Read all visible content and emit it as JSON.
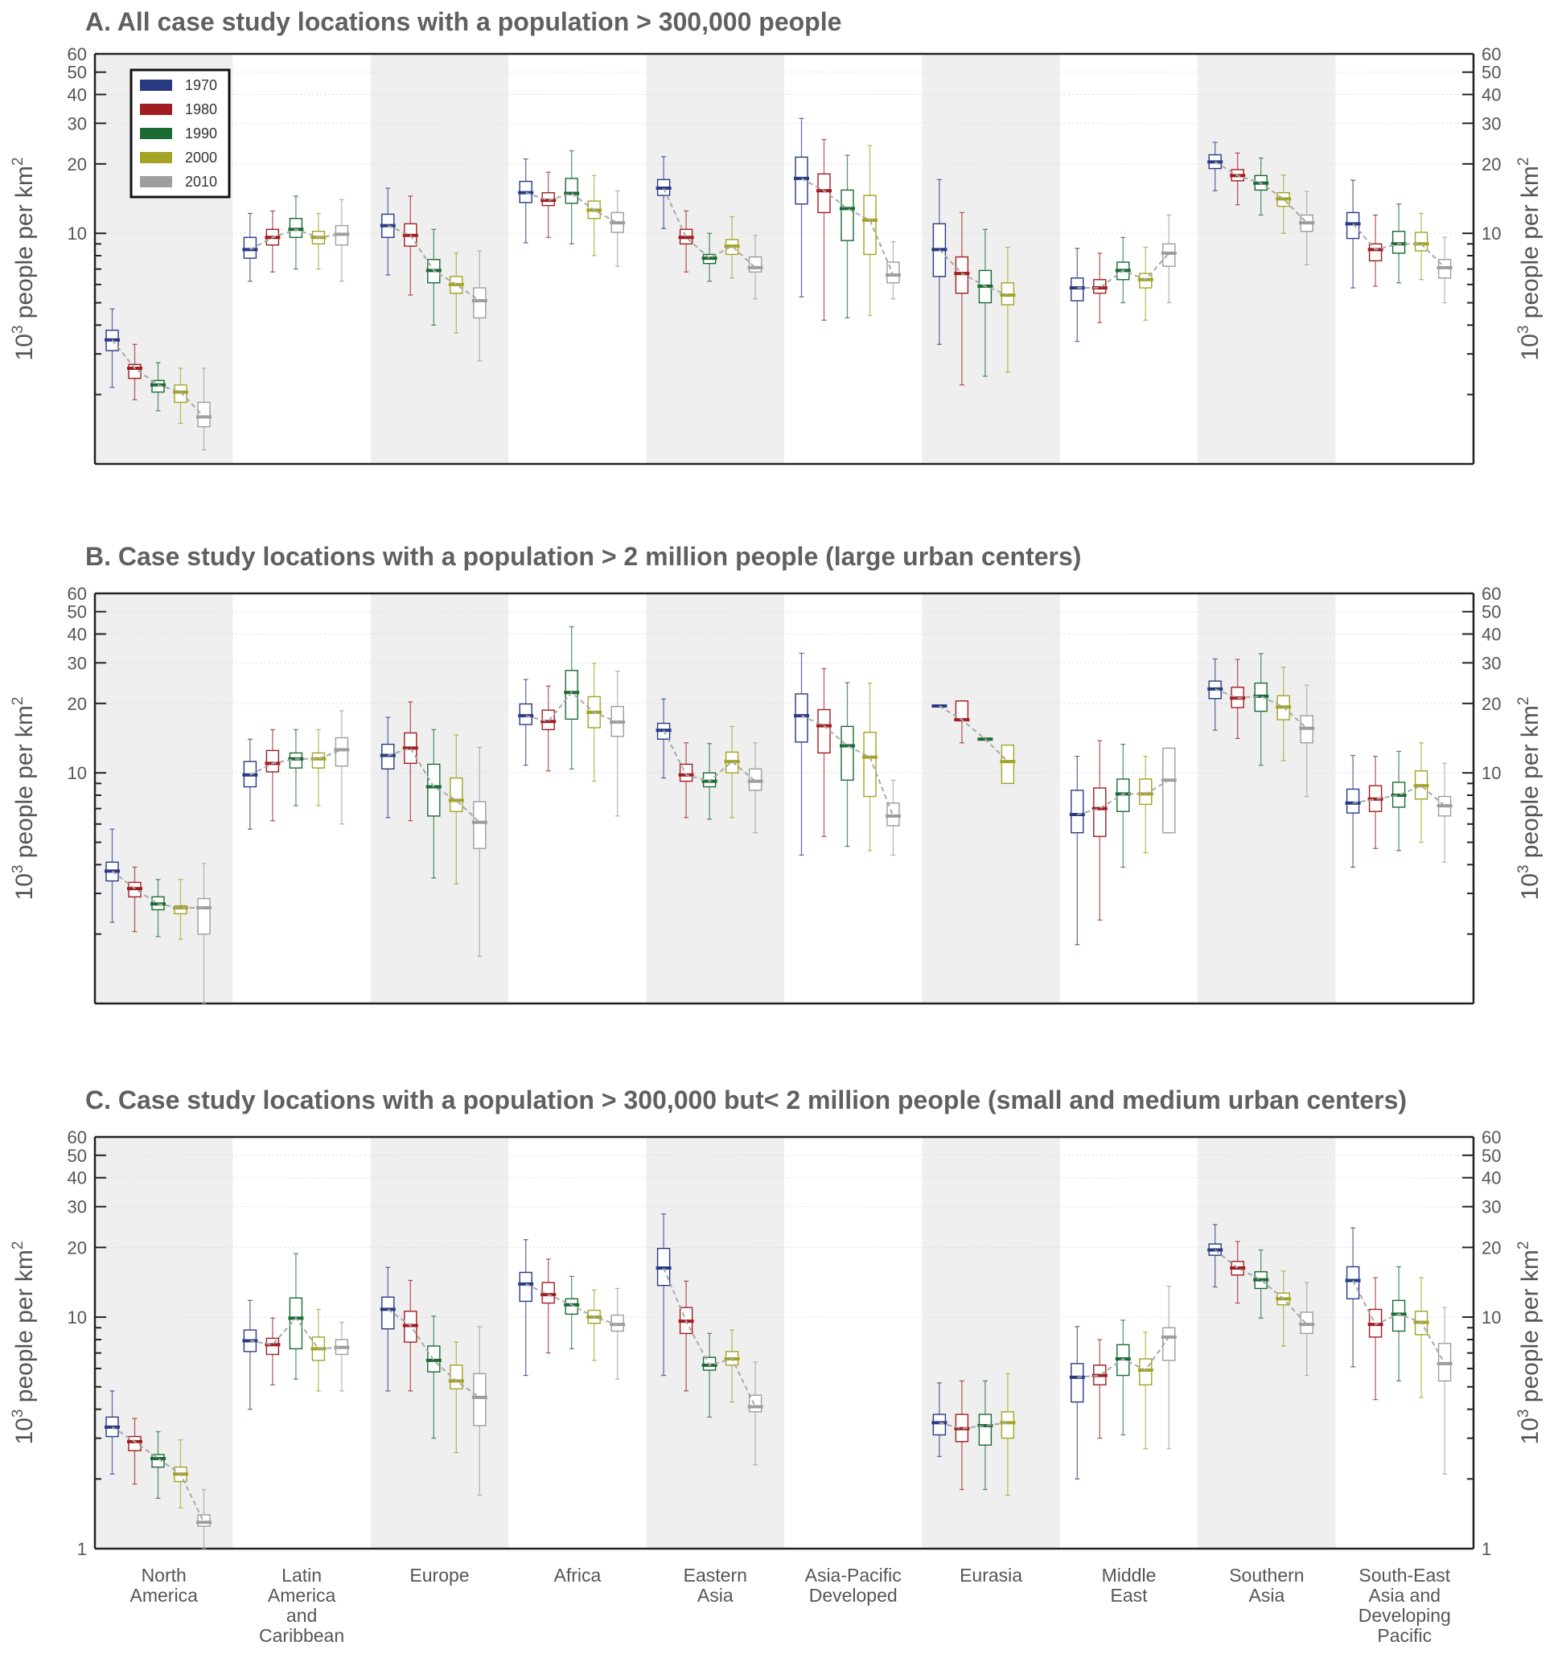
{
  "regions": [
    "North America",
    "Latin America and Caribbean",
    "Europe",
    "Africa",
    "Eastern Asia",
    "Asia-Pacific Developed",
    "Eurasia",
    "Middle East",
    "Southern Asia",
    "South-East Asia and Developing Pacific"
  ],
  "region_label_lines": [
    [
      "North",
      "America"
    ],
    [
      "Latin",
      "America",
      "and",
      "Caribbean"
    ],
    [
      "Europe"
    ],
    [
      "Africa"
    ],
    [
      "Eastern",
      "Asia"
    ],
    [
      "Asia-Pacific",
      "Developed"
    ],
    [
      "Eurasia"
    ],
    [
      "Middle",
      "East"
    ],
    [
      "Southern",
      "Asia"
    ],
    [
      "South-East",
      "Asia and",
      "Developing",
      "Pacific"
    ]
  ],
  "legend": [
    {
      "label": "1970",
      "color": "#283a84"
    },
    {
      "label": "1980",
      "color": "#a21c1f"
    },
    {
      "label": "1990",
      "color": "#1a6b33"
    },
    {
      "label": "2000",
      "color": "#a3a325"
    },
    {
      "label": "2010",
      "color": "#9d9d9d"
    }
  ],
  "axis": {
    "ylabel_base": "10",
    "ylabel_exp": "3",
    "ylabel_mid": " people per km",
    "ylabel_tail": "2",
    "tick_values": [
      10,
      20,
      30,
      40,
      50,
      60
    ],
    "tick_labels": [
      "10",
      "20",
      "30",
      "40",
      "50",
      "60"
    ],
    "bottom_tick_value": 1,
    "bottom_tick_label": "1",
    "scale": "log",
    "ylim": [
      1,
      60
    ],
    "shaded_regions": [
      0,
      2,
      4,
      6,
      8
    ]
  },
  "chart_data": [
    {
      "type": "box",
      "title": "A. All case study locations with a population > 300,000 people",
      "ylim": [
        1,
        60
      ],
      "scale": "log",
      "show_bottom_tick_label": false,
      "legend_placement": "top-left",
      "boxes": [
        [
          [
            2.15,
            3.1,
            3.45,
            3.8,
            4.7
          ],
          [
            1.9,
            2.35,
            2.6,
            2.7,
            3.3
          ],
          [
            1.7,
            2.05,
            2.2,
            2.3,
            2.75
          ],
          [
            1.5,
            1.85,
            2.05,
            2.2,
            2.6
          ],
          [
            1.15,
            1.45,
            1.6,
            1.85,
            2.6
          ]
        ],
        [
          [
            6.2,
            7.8,
            8.5,
            9.6,
            12.2
          ],
          [
            6.8,
            8.9,
            9.6,
            10.4,
            12.5
          ],
          [
            7.0,
            9.6,
            10.4,
            11.6,
            14.5
          ],
          [
            7.0,
            9.0,
            9.6,
            10.2,
            12.2
          ],
          [
            6.2,
            8.9,
            9.9,
            10.8,
            14.0
          ]
        ],
        [
          [
            6.6,
            9.6,
            10.8,
            12.1,
            15.7
          ],
          [
            5.4,
            8.8,
            9.8,
            11.0,
            14.5
          ],
          [
            4.0,
            6.1,
            6.9,
            7.7,
            10.4
          ],
          [
            3.7,
            5.5,
            6.0,
            6.5,
            8.2
          ],
          [
            2.8,
            4.3,
            5.1,
            5.8,
            8.4
          ]
        ],
        [
          [
            9.1,
            13.6,
            15.0,
            16.8,
            21.0
          ],
          [
            9.6,
            13.2,
            13.9,
            15.0,
            18.4
          ],
          [
            9.0,
            13.5,
            14.9,
            17.3,
            22.8
          ],
          [
            8.0,
            11.6,
            12.6,
            13.8,
            17.8
          ],
          [
            7.2,
            10.1,
            11.1,
            12.3,
            15.3
          ]
        ],
        [
          [
            10.5,
            14.6,
            15.7,
            17.1,
            21.5
          ],
          [
            6.8,
            9.0,
            9.6,
            10.4,
            12.5
          ],
          [
            6.2,
            7.4,
            7.8,
            8.1,
            10.0
          ],
          [
            6.4,
            8.1,
            8.8,
            9.4,
            11.8
          ],
          [
            5.2,
            6.8,
            7.1,
            7.9,
            9.8
          ]
        ],
        [
          [
            5.3,
            13.4,
            17.3,
            21.4,
            31.5
          ],
          [
            4.2,
            12.3,
            15.3,
            18.1,
            25.5
          ],
          [
            4.3,
            9.3,
            12.8,
            15.4,
            21.8
          ],
          [
            4.4,
            8.1,
            11.4,
            14.6,
            24.0
          ],
          [
            5.2,
            6.1,
            6.6,
            7.5,
            9.2
          ]
        ],
        [
          [
            3.3,
            6.5,
            8.5,
            11.0,
            17.1
          ],
          [
            2.2,
            5.5,
            6.7,
            7.9,
            12.3
          ],
          [
            2.4,
            5.0,
            5.9,
            6.9,
            10.4
          ],
          [
            2.5,
            4.9,
            5.4,
            6.1,
            8.7
          ],
          [
            null,
            null,
            null,
            null,
            null
          ]
        ],
        [
          [
            3.4,
            5.1,
            5.8,
            6.4,
            8.6
          ],
          [
            4.1,
            5.5,
            5.8,
            6.3,
            8.2
          ],
          [
            5.0,
            6.3,
            6.9,
            7.5,
            9.6
          ],
          [
            4.2,
            5.8,
            6.3,
            6.7,
            8.7
          ],
          [
            5.0,
            7.2,
            8.2,
            9.0,
            12.0
          ]
        ],
        [
          [
            15.3,
            19.1,
            20.4,
            21.9,
            24.8
          ],
          [
            13.3,
            16.9,
            17.8,
            18.9,
            22.3
          ],
          [
            12.0,
            15.4,
            16.5,
            17.8,
            21.2
          ],
          [
            10.0,
            13.1,
            14.1,
            15.0,
            17.9
          ],
          [
            7.3,
            10.2,
            11.1,
            12.0,
            15.2
          ]
        ],
        [
          [
            5.8,
            9.5,
            11.0,
            12.3,
            17.0
          ],
          [
            5.9,
            7.6,
            8.5,
            9.0,
            12.0
          ],
          [
            6.1,
            8.2,
            9.0,
            10.2,
            13.4
          ],
          [
            6.3,
            8.4,
            9.0,
            10.1,
            12.2
          ],
          [
            5.0,
            6.4,
            7.1,
            7.7,
            9.6
          ]
        ]
      ],
      "trend_years": [
        "1970",
        "1980",
        "1990",
        "2000",
        "2010"
      ]
    },
    {
      "type": "box",
      "title": "B. Case study locations with a population > 2 million people (large urban centers)",
      "ylim": [
        1,
        60
      ],
      "scale": "log",
      "show_bottom_tick_label": false,
      "boxes": [
        [
          [
            2.25,
            3.4,
            3.75,
            4.1,
            5.7
          ],
          [
            2.05,
            2.9,
            3.15,
            3.35,
            3.9
          ],
          [
            1.95,
            2.55,
            2.7,
            2.9,
            3.45
          ],
          [
            1.9,
            2.45,
            2.6,
            2.65,
            3.45
          ],
          [
            1.0,
            2.0,
            2.6,
            2.85,
            4.05
          ]
        ],
        [
          [
            5.7,
            8.7,
            9.8,
            11.2,
            14.0
          ],
          [
            6.2,
            10.1,
            11.0,
            12.5,
            15.4
          ],
          [
            7.2,
            10.5,
            11.5,
            12.2,
            15.4
          ],
          [
            7.2,
            10.5,
            11.5,
            12.2,
            15.4
          ],
          [
            6.0,
            10.7,
            12.6,
            14.2,
            18.6
          ]
        ],
        [
          [
            6.4,
            10.4,
            11.9,
            13.3,
            17.4
          ],
          [
            6.2,
            11.0,
            12.8,
            14.9,
            20.3
          ],
          [
            3.5,
            6.5,
            8.7,
            10.9,
            15.4
          ],
          [
            3.3,
            6.8,
            7.6,
            9.5,
            14.6
          ],
          [
            1.6,
            4.7,
            6.1,
            7.5,
            12.9
          ]
        ],
        [
          [
            10.8,
            16.2,
            17.7,
            19.9,
            25.4
          ],
          [
            10.2,
            15.4,
            16.7,
            18.7,
            23.8
          ],
          [
            10.4,
            17.1,
            22.3,
            27.8,
            43.0
          ],
          [
            9.2,
            15.7,
            18.3,
            21.4,
            29.8
          ],
          [
            6.5,
            14.4,
            16.6,
            19.4,
            27.6
          ]
        ],
        [
          [
            9.5,
            14.0,
            15.3,
            16.4,
            20.9
          ],
          [
            6.4,
            9.2,
            9.8,
            10.9,
            13.5
          ],
          [
            6.3,
            8.7,
            9.2,
            10.0,
            13.4
          ],
          [
            6.4,
            10.0,
            11.2,
            12.3,
            15.9
          ],
          [
            5.5,
            8.4,
            9.2,
            10.4,
            13.5
          ]
        ],
        [
          [
            4.4,
            13.6,
            17.7,
            22.0,
            33.0
          ],
          [
            5.3,
            12.2,
            16.0,
            18.8,
            28.3
          ],
          [
            4.8,
            9.3,
            13.1,
            15.9,
            24.6
          ],
          [
            4.6,
            7.9,
            11.7,
            15.0,
            24.5
          ],
          [
            4.4,
            5.9,
            6.5,
            7.4,
            9.3
          ]
        ],
        [
          [
            null,
            19.5,
            19.5,
            19.5,
            null
          ],
          [
            13.5,
            17.0,
            17.0,
            20.5,
            20.5
          ],
          [
            null,
            14.0,
            14.0,
            14.0,
            null
          ],
          [
            9.0,
            9.0,
            11.2,
            13.2,
            13.2
          ],
          [
            null,
            null,
            null,
            null,
            null
          ]
        ],
        [
          [
            1.8,
            5.5,
            6.6,
            8.4,
            11.8
          ],
          [
            2.3,
            5.3,
            7.0,
            8.6,
            13.8
          ],
          [
            3.9,
            6.8,
            8.1,
            9.4,
            13.3
          ],
          [
            4.5,
            7.3,
            8.1,
            9.4,
            11.8
          ],
          [
            5.5,
            5.5,
            9.3,
            12.8,
            12.8
          ]
        ],
        [
          [
            15.3,
            21.0,
            23.1,
            25.0,
            31.2
          ],
          [
            14.1,
            19.2,
            21.1,
            23.5,
            31.0
          ],
          [
            10.8,
            18.5,
            21.5,
            24.5,
            32.9
          ],
          [
            11.3,
            17.0,
            19.3,
            21.6,
            28.7
          ],
          [
            7.9,
            13.5,
            15.6,
            17.7,
            24.0
          ]
        ],
        [
          [
            3.9,
            6.7,
            7.4,
            8.5,
            11.9
          ],
          [
            4.7,
            6.8,
            7.7,
            8.8,
            11.8
          ],
          [
            4.6,
            7.1,
            8.0,
            9.1,
            12.4
          ],
          [
            5.0,
            7.7,
            8.8,
            10.2,
            13.5
          ],
          [
            4.1,
            6.5,
            7.2,
            7.9,
            11.0
          ]
        ]
      ],
      "trend_years": [
        "1970",
        "1980",
        "1990",
        "2000",
        "2010"
      ]
    },
    {
      "type": "box",
      "title": "C. Case study locations with a population > 300,000 but< 2 million people (small and medium urban centers)",
      "ylim": [
        1,
        60
      ],
      "scale": "log",
      "show_bottom_tick_label": true,
      "boxes": [
        [
          [
            2.1,
            3.05,
            3.35,
            3.7,
            4.8
          ],
          [
            1.9,
            2.65,
            2.9,
            3.05,
            3.65
          ],
          [
            1.65,
            2.25,
            2.45,
            2.55,
            3.2
          ],
          [
            1.5,
            1.95,
            2.1,
            2.25,
            2.95
          ],
          [
            1.0,
            1.25,
            1.3,
            1.4,
            1.8
          ]
        ],
        [
          [
            4.0,
            7.1,
            7.9,
            8.8,
            11.8
          ],
          [
            5.1,
            6.9,
            7.6,
            8.1,
            9.9
          ],
          [
            5.4,
            7.3,
            9.9,
            12.1,
            18.8
          ],
          [
            4.8,
            6.5,
            7.3,
            8.2,
            10.8
          ],
          [
            4.8,
            6.9,
            7.4,
            8.0,
            9.5
          ]
        ],
        [
          [
            4.8,
            8.9,
            10.8,
            12.2,
            16.4
          ],
          [
            4.8,
            7.8,
            9.2,
            10.6,
            14.4
          ],
          [
            3.0,
            5.8,
            6.5,
            7.5,
            10.1
          ],
          [
            2.6,
            4.9,
            5.3,
            6.2,
            7.8
          ],
          [
            1.7,
            3.4,
            4.5,
            5.7,
            9.1
          ]
        ],
        [
          [
            5.6,
            11.7,
            13.9,
            15.6,
            21.6
          ],
          [
            7.0,
            11.5,
            12.5,
            14.1,
            17.8
          ],
          [
            7.3,
            10.3,
            11.3,
            12.0,
            15.0
          ],
          [
            6.5,
            9.4,
            10.0,
            10.7,
            13.1
          ],
          [
            5.4,
            8.7,
            9.3,
            10.2,
            13.3
          ]
        ],
        [
          [
            5.6,
            13.7,
            16.3,
            19.8,
            27.9
          ],
          [
            4.8,
            8.5,
            9.6,
            11.0,
            14.3
          ],
          [
            3.7,
            5.9,
            6.2,
            6.7,
            8.5
          ],
          [
            4.3,
            6.2,
            6.6,
            7.1,
            8.8
          ],
          [
            2.3,
            3.9,
            4.1,
            4.6,
            6.4
          ]
        ],
        [
          [
            null,
            null,
            null,
            null,
            null
          ],
          [
            null,
            null,
            null,
            null,
            null
          ],
          [
            null,
            null,
            null,
            null,
            null
          ],
          [
            null,
            null,
            null,
            null,
            null
          ],
          [
            null,
            null,
            null,
            null,
            null
          ]
        ],
        [
          [
            2.5,
            3.1,
            3.5,
            3.8,
            5.2
          ],
          [
            1.8,
            2.9,
            3.3,
            3.8,
            5.3
          ],
          [
            1.8,
            2.8,
            3.4,
            3.8,
            5.3
          ],
          [
            1.7,
            3.0,
            3.5,
            3.9,
            5.7
          ]
        ],
        [
          [
            2.0,
            4.3,
            5.5,
            6.3,
            9.1
          ],
          [
            3.0,
            5.1,
            5.6,
            6.2,
            8.0
          ],
          [
            3.1,
            5.6,
            6.6,
            7.6,
            9.7
          ],
          [
            2.7,
            5.1,
            5.9,
            6.6,
            8.6
          ],
          [
            2.7,
            6.5,
            8.2,
            9.0,
            13.6
          ]
        ],
        [
          [
            13.5,
            18.5,
            19.5,
            20.7,
            25.1
          ],
          [
            11.5,
            15.2,
            16.3,
            17.4,
            21.2
          ],
          [
            9.9,
            13.3,
            14.5,
            15.7,
            19.5
          ],
          [
            7.5,
            11.3,
            12.0,
            12.7,
            15.8
          ],
          [
            5.6,
            8.5,
            9.3,
            10.5,
            14.1
          ]
        ],
        [
          [
            6.1,
            12.0,
            14.4,
            16.5,
            24.3
          ],
          [
            4.4,
            8.2,
            9.3,
            10.8,
            14.8
          ],
          [
            5.3,
            8.7,
            10.3,
            11.8,
            16.5
          ],
          [
            4.5,
            8.4,
            9.5,
            10.6,
            14.8
          ],
          [
            2.1,
            5.3,
            6.3,
            7.7,
            11.0
          ]
        ]
      ],
      "trend_years": [
        "1970",
        "1980",
        "1990",
        "2000",
        "2010"
      ]
    }
  ]
}
